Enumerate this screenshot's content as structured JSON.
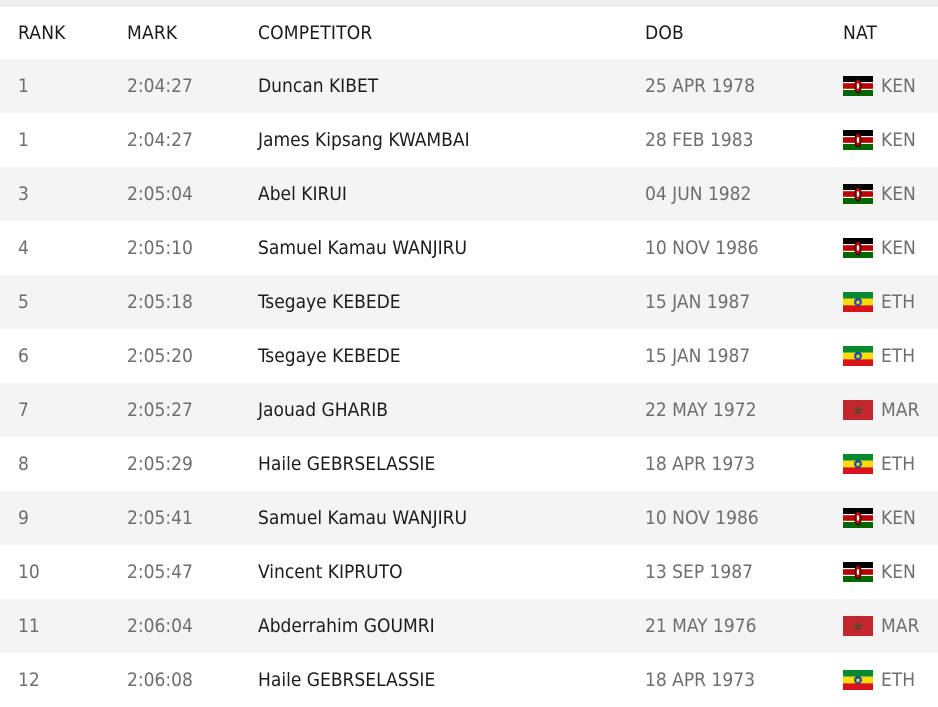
{
  "headers": {
    "rank": "RANK",
    "mark": "MARK",
    "competitor": "COMPETITOR",
    "dob": "DOB",
    "nat": "NAT"
  },
  "rows": [
    {
      "rank": "1",
      "mark": "2:04:27",
      "competitor": "Duncan KIBET",
      "dob": "25 APR 1978",
      "nat": "KEN",
      "flag": "kenya-flag-icon"
    },
    {
      "rank": "1",
      "mark": "2:04:27",
      "competitor": "James Kipsang KWAMBAI",
      "dob": "28 FEB 1983",
      "nat": "KEN",
      "flag": "kenya-flag-icon"
    },
    {
      "rank": "3",
      "mark": "2:05:04",
      "competitor": "Abel KIRUI",
      "dob": "04 JUN 1982",
      "nat": "KEN",
      "flag": "kenya-flag-icon"
    },
    {
      "rank": "4",
      "mark": "2:05:10",
      "competitor": "Samuel Kamau WANJIRU",
      "dob": "10 NOV 1986",
      "nat": "KEN",
      "flag": "kenya-flag-icon"
    },
    {
      "rank": "5",
      "mark": "2:05:18",
      "competitor": "Tsegaye KEBEDE",
      "dob": "15 JAN 1987",
      "nat": "ETH",
      "flag": "ethiopia-flag-icon"
    },
    {
      "rank": "6",
      "mark": "2:05:20",
      "competitor": "Tsegaye KEBEDE",
      "dob": "15 JAN 1987",
      "nat": "ETH",
      "flag": "ethiopia-flag-icon"
    },
    {
      "rank": "7",
      "mark": "2:05:27",
      "competitor": "Jaouad GHARIB",
      "dob": "22 MAY 1972",
      "nat": "MAR",
      "flag": "morocco-flag-icon"
    },
    {
      "rank": "8",
      "mark": "2:05:29",
      "competitor": "Haile GEBRSELASSIE",
      "dob": "18 APR 1973",
      "nat": "ETH",
      "flag": "ethiopia-flag-icon"
    },
    {
      "rank": "9",
      "mark": "2:05:41",
      "competitor": "Samuel Kamau WANJIRU",
      "dob": "10 NOV 1986",
      "nat": "KEN",
      "flag": "kenya-flag-icon"
    },
    {
      "rank": "10",
      "mark": "2:05:47",
      "competitor": "Vincent KIPRUTO",
      "dob": "13 SEP 1987",
      "nat": "KEN",
      "flag": "kenya-flag-icon"
    },
    {
      "rank": "11",
      "mark": "2:06:04",
      "competitor": "Abderrahim GOUMRI",
      "dob": "21 MAY 1976",
      "nat": "MAR",
      "flag": "morocco-flag-icon"
    },
    {
      "rank": "12",
      "mark": "2:06:08",
      "competitor": "Haile GEBRSELASSIE",
      "dob": "18 APR 1973",
      "nat": "ETH",
      "flag": "ethiopia-flag-icon"
    }
  ],
  "colors": {
    "kenya": [
      "#000000",
      "#bb0000",
      "#006600",
      "#ffffff"
    ],
    "ethiopia": [
      "#078930",
      "#fcdd09",
      "#da121a",
      "#0f47af"
    ],
    "morocco": [
      "#c1272d",
      "#006233"
    ]
  }
}
